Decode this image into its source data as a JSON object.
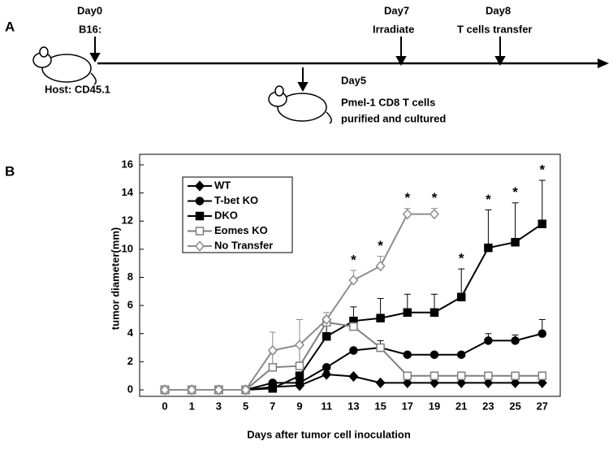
{
  "panel_a": {
    "label": "A",
    "events": [
      {
        "day": "Day0",
        "lines": [
          "B16:"
        ]
      },
      {
        "day": "Day5",
        "lines": [
          "Pmel-1 CD8 T cells",
          "purified and cultured"
        ]
      },
      {
        "day": "Day7",
        "lines": [
          "Irradiate"
        ]
      },
      {
        "day": "Day8",
        "lines": [
          "T cells transfer"
        ]
      }
    ],
    "host": "Host: CD45.1"
  },
  "chart_data": {
    "type": "line",
    "panel_label": "B",
    "x_label": "Days after tumor cell inoculation",
    "y_label": "tumor diameter(mm)",
    "categories": [
      "0",
      "1",
      "3",
      "5",
      "7",
      "9",
      "11",
      "13",
      "15",
      "17",
      "19",
      "21",
      "23",
      "25",
      "27"
    ],
    "ylim": [
      0,
      16
    ],
    "yticks": [
      0,
      2,
      4,
      6,
      8,
      10,
      12,
      14,
      16
    ],
    "series": [
      {
        "name": "WT",
        "color": "#000000",
        "marker": "diamond",
        "filled": true,
        "values": [
          0,
          0,
          0,
          0,
          0.2,
          0.3,
          1.1,
          0.95,
          0.5,
          0.5,
          0.5,
          0.5,
          0.5,
          0.5,
          0.5
        ],
        "errors": [
          null,
          null,
          null,
          null,
          null,
          null,
          0.2,
          null,
          null,
          null,
          null,
          null,
          null,
          null,
          null
        ]
      },
      {
        "name": "T-bet KO",
        "color": "#000000",
        "marker": "circle",
        "filled": true,
        "values": [
          0,
          0,
          0,
          0,
          0.5,
          0.5,
          1.6,
          2.8,
          3.0,
          2.5,
          2.5,
          2.5,
          3.5,
          3.5,
          4.0
        ],
        "errors": [
          null,
          null,
          null,
          null,
          null,
          null,
          null,
          0.2,
          0.5,
          null,
          null,
          null,
          0.5,
          0.4,
          1.0
        ]
      },
      {
        "name": "DKO",
        "color": "#000000",
        "marker": "square",
        "filled": true,
        "values": [
          0,
          0,
          0,
          0,
          0.1,
          1.0,
          3.8,
          4.9,
          5.1,
          5.5,
          5.5,
          6.6,
          10.1,
          10.5,
          11.8
        ],
        "errors": [
          null,
          null,
          null,
          null,
          null,
          null,
          1.0,
          1.0,
          1.4,
          1.3,
          1.3,
          2.0,
          2.7,
          2.8,
          3.1
        ]
      },
      {
        "name": "Eomes KO",
        "color": "#7f7f7f",
        "marker": "square",
        "filled": false,
        "values": [
          0,
          0,
          0,
          0,
          1.6,
          1.7,
          4.8,
          4.5,
          3.0,
          1.0,
          1.0,
          1.0,
          1.0,
          1.0,
          1.0
        ],
        "errors": [
          null,
          null,
          null,
          null,
          1.0,
          3.3,
          0.4,
          null,
          null,
          null,
          null,
          null,
          null,
          null,
          null
        ]
      },
      {
        "name": "No Transfer",
        "color": "#8c8c8c",
        "marker": "diamond",
        "filled": false,
        "values": [
          0,
          0,
          0,
          0,
          2.8,
          3.2,
          5.0,
          7.8,
          8.8,
          12.5,
          12.5,
          null,
          null,
          null,
          null
        ],
        "errors": [
          null,
          null,
          null,
          null,
          1.3,
          1.8,
          0.5,
          0.7,
          0.7,
          0.4,
          0.4,
          null,
          null,
          null,
          null
        ]
      }
    ],
    "annotations": [
      {
        "text": "*",
        "x": "13"
      },
      {
        "text": "*",
        "x": "15"
      },
      {
        "text": "*",
        "x": "17"
      },
      {
        "text": "*",
        "x": "19"
      },
      {
        "text": "*",
        "x": "21"
      },
      {
        "text": "*",
        "x": "23"
      },
      {
        "text": "*",
        "x": "25"
      },
      {
        "text": "*",
        "x": "27"
      }
    ]
  }
}
